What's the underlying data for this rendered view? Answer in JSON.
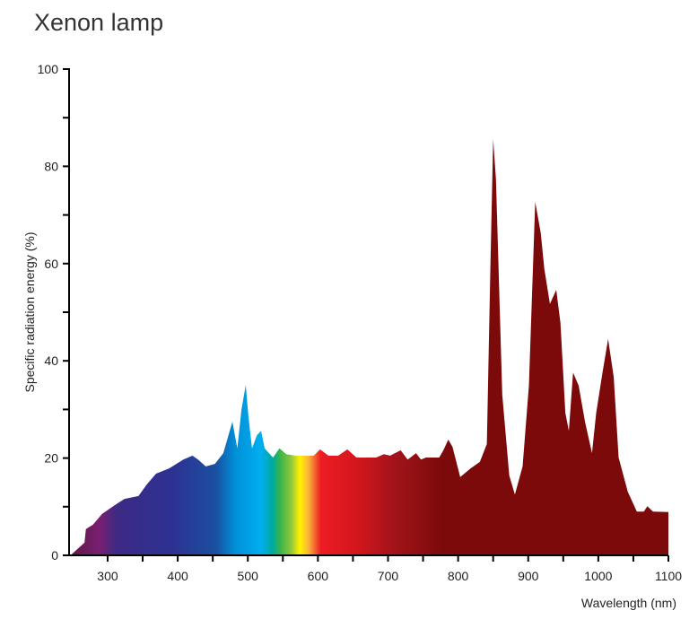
{
  "chart_data": {
    "type": "area",
    "title": "Xenon lamp",
    "x_label": "Wavelength (nm)",
    "y_label": "Specific radiation energy (%)",
    "xlim": [
      245,
      1100
    ],
    "ylim": [
      0,
      100
    ],
    "xticks": [
      300,
      400,
      500,
      600,
      700,
      800,
      900,
      1000,
      1100
    ],
    "xminorticks": [
      350,
      450,
      550,
      650,
      750,
      850,
      950,
      1050
    ],
    "yticks": [
      0,
      20,
      40,
      60,
      80,
      100
    ],
    "yminorticks": [
      10,
      30,
      50,
      70,
      90
    ],
    "color": "#7d0a0a",
    "x": [
      247,
      267,
      269,
      279,
      292,
      312,
      324,
      344,
      356,
      369,
      388,
      408,
      421,
      429,
      440,
      453,
      465,
      478,
      485,
      491,
      497,
      501,
      506,
      513,
      519,
      524,
      536,
      545,
      555,
      568,
      594,
      603,
      615,
      629,
      642,
      655,
      683,
      694,
      703,
      718,
      728,
      740,
      747,
      754,
      773,
      779,
      786,
      792,
      803,
      818,
      831,
      841,
      846,
      850,
      854,
      863,
      873,
      881,
      892,
      901,
      910,
      918,
      923,
      931,
      940,
      946,
      953,
      958,
      964,
      972,
      981,
      991,
      997,
      1006,
      1014,
      1022,
      1029,
      1042,
      1055,
      1065,
      1070,
      1078,
      1100
    ],
    "values": [
      0,
      2.6,
      5.4,
      6.3,
      8.5,
      10.5,
      11.6,
      12.2,
      14.6,
      16.8,
      17.9,
      19.7,
      20.5,
      19.7,
      18.3,
      18.8,
      21,
      27.5,
      22,
      30,
      35,
      28.4,
      22,
      24.7,
      25.6,
      22,
      20.1,
      22,
      20.8,
      20.5,
      20.5,
      21.8,
      20.5,
      20.5,
      21.8,
      20.1,
      20.1,
      20.8,
      20.5,
      21.6,
      19.7,
      21,
      19.7,
      20.1,
      20.1,
      21.6,
      23.8,
      22.3,
      16.1,
      17.9,
      19.2,
      22.9,
      58.9,
      85.6,
      77.3,
      33,
      16.4,
      12.5,
      18.3,
      34.9,
      72.7,
      66.2,
      58.9,
      51.7,
      54.6,
      47.8,
      29.3,
      25.6,
      37.6,
      34.9,
      27.5,
      21,
      29.3,
      37.6,
      44.5,
      36.7,
      20.1,
      13.1,
      9,
      9,
      10.1,
      9,
      8.9
    ]
  }
}
